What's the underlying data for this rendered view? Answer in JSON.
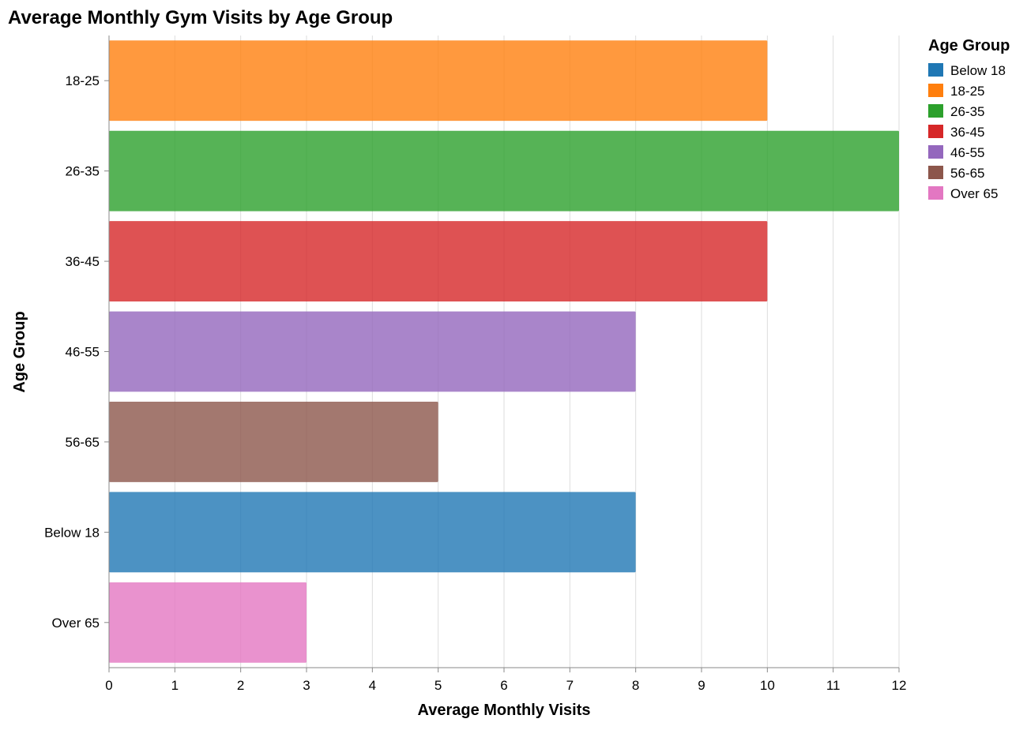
{
  "chart_data": {
    "type": "bar",
    "orientation": "horizontal",
    "title": "Average Monthly Gym Visits by Age Group",
    "xlabel": "Average Monthly Visits",
    "ylabel": "Age Group",
    "xlim": [
      0,
      12
    ],
    "x_ticks": [
      "0",
      "1",
      "2",
      "3",
      "4",
      "5",
      "6",
      "7",
      "8",
      "9",
      "10",
      "11",
      "12"
    ],
    "grid": true,
    "categories": [
      "18-25",
      "26-35",
      "36-45",
      "46-55",
      "56-65",
      "Below 18",
      "Over 65"
    ],
    "values": [
      10,
      12,
      10,
      8,
      5,
      8,
      3
    ],
    "bar_colors": [
      "#ff7f0e",
      "#2ca02c",
      "#d62728",
      "#9467bd",
      "#8c564b",
      "#1f77b4",
      "#e377c2"
    ],
    "legend": {
      "title": "Age Group",
      "placement": "top-right",
      "items": [
        {
          "label": "Below 18",
          "color": "#1f77b4"
        },
        {
          "label": "18-25",
          "color": "#ff7f0e"
        },
        {
          "label": "26-35",
          "color": "#2ca02c"
        },
        {
          "label": "36-45",
          "color": "#d62728"
        },
        {
          "label": "46-55",
          "color": "#9467bd"
        },
        {
          "label": "56-65",
          "color": "#8c564b"
        },
        {
          "label": "Over 65",
          "color": "#e377c2"
        }
      ]
    }
  }
}
